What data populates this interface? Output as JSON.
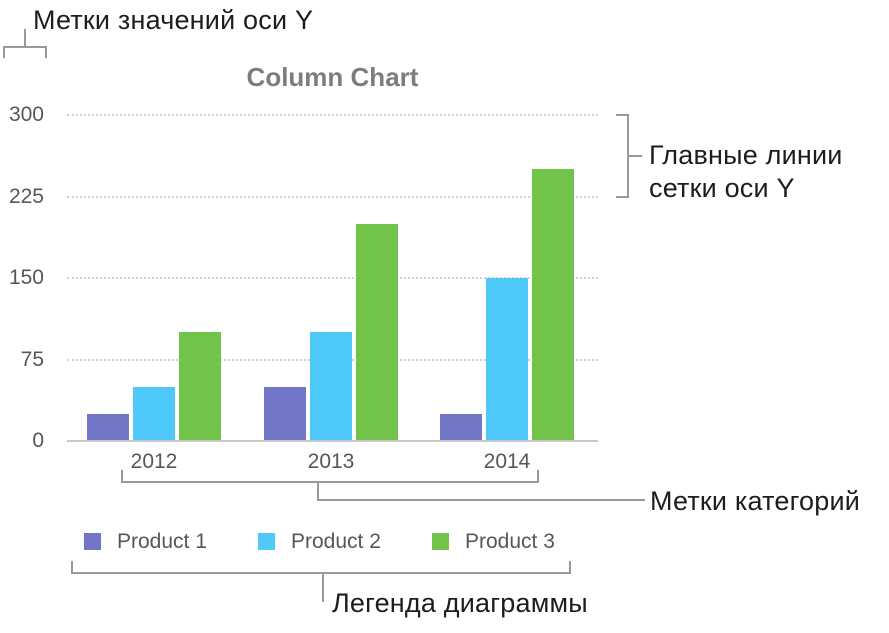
{
  "annotations": {
    "y_value_labels": "Метки значений оси Y",
    "y_gridlines_line1": "Главные линии",
    "y_gridlines_line2": "сетки оси Y",
    "category_labels": "Метки категорий",
    "legend": "Легенда диаграммы"
  },
  "chart_data": {
    "type": "bar",
    "title": "Column Chart",
    "categories": [
      "2012",
      "2013",
      "2014"
    ],
    "series": [
      {
        "name": "Product 1",
        "color": "#7176c6",
        "values": [
          25,
          50,
          25
        ]
      },
      {
        "name": "Product 2",
        "color": "#4ec9f9",
        "values": [
          50,
          100,
          150
        ]
      },
      {
        "name": "Product 3",
        "color": "#72c349",
        "values": [
          100,
          200,
          250
        ]
      }
    ],
    "y_ticks": [
      0,
      75,
      150,
      225,
      300
    ],
    "ylim": [
      0,
      300
    ],
    "xlabel": "",
    "ylabel": "",
    "grid": "horizontal dotted gridlines at each y tick above 0",
    "legend_position": "bottom"
  },
  "colors": {
    "bracket": "#98989d",
    "axis_text": "#57575a",
    "title_text": "#7d7d80",
    "gridline": "#cfcfd4",
    "baseline": "#c8c8ca",
    "annotation_text": "#1d1d1f"
  }
}
